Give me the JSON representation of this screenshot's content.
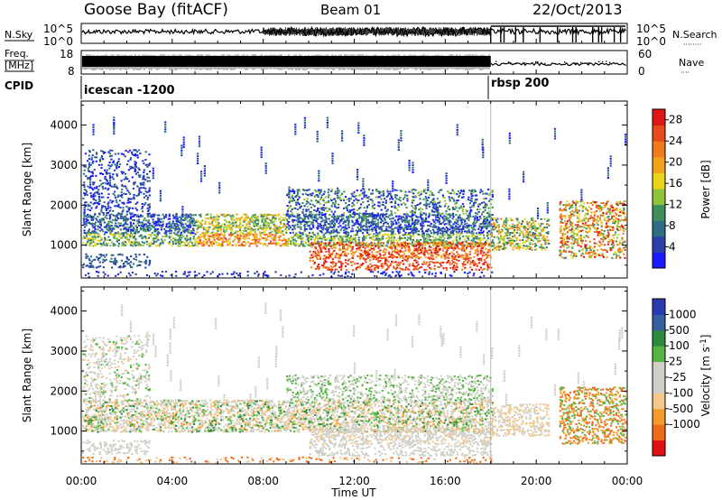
{
  "header": {
    "station": "Goose Bay (fitACF)",
    "beam": "Beam 01",
    "date": "22/Oct/2013"
  },
  "noise_panel": {
    "left_label": "N.Sky",
    "right_label": "N.Search",
    "right_dots": "········",
    "y_ticks_left": [
      "10^5",
      "10^0"
    ],
    "y_ticks_right": [
      "10^5",
      "10^0"
    ]
  },
  "freq_panel": {
    "left_label_top": "Freq.",
    "left_label_bottom": "[MHz]",
    "right_label": "Nave",
    "right_dots": "····",
    "y_ticks_left": [
      "18",
      "8"
    ],
    "y_ticks_right": [
      "60",
      "0"
    ]
  },
  "cpid": {
    "label": "CPID",
    "modes": [
      "icescan -1200",
      "rbsp 200"
    ]
  },
  "x_axis": {
    "label": "Time UT",
    "ticks": [
      "00:00",
      "04:00",
      "08:00",
      "12:00",
      "16:00",
      "20:00",
      "00:00"
    ]
  },
  "colors": {
    "power": [
      "#1a1aff",
      "#2a3fa8",
      "#2e6e84",
      "#3e8f5b",
      "#8fc33a",
      "#e8d51a",
      "#f2a21a",
      "#f07a1c",
      "#e84a1c",
      "#e01515"
    ],
    "velocity": [
      "#e01010",
      "#f06a1a",
      "#f39a2a",
      "#f4c88a",
      "#cfcfc7",
      "#cfcfc7",
      "#55b543",
      "#2d8a3d",
      "#355fa0",
      "#2a3bb0"
    ]
  },
  "chart_data": [
    {
      "type": "heatmap",
      "name": "power",
      "ylabel": "Slant Range [km]",
      "ylim": [
        180,
        4600
      ],
      "yticks": [
        1000,
        2000,
        3000,
        4000
      ],
      "xlim_hours": [
        0,
        24
      ],
      "colorbar": {
        "label": "Power [dB]",
        "ticks": [
          4,
          8,
          12,
          16,
          20,
          24,
          28
        ],
        "range": [
          0,
          30
        ]
      }
    },
    {
      "type": "heatmap",
      "name": "velocity",
      "ylabel": "Slant Range [km]",
      "ylim": [
        180,
        4600
      ],
      "yticks": [
        1000,
        2000,
        3000,
        4000
      ],
      "xlim_hours": [
        0,
        24
      ],
      "colorbar": {
        "label": "Velocity [m s^-1]",
        "ticks": [
          "1000",
          "500",
          "100",
          "25",
          "-25",
          "-100",
          "-500",
          "-1000"
        ]
      }
    }
  ]
}
